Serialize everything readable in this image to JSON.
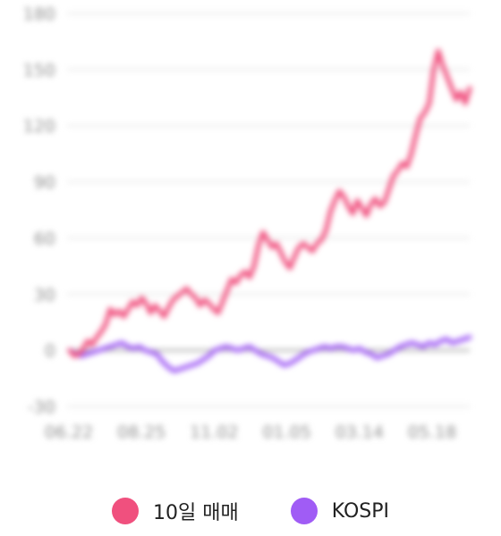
{
  "chart_data": {
    "type": "line",
    "x_tick_labels": [
      "06.22",
      "08.25",
      "11.02",
      "01.05",
      "03.14",
      "05.18"
    ],
    "y_ticks": [
      180,
      150,
      120,
      90,
      60,
      30,
      0,
      -30
    ],
    "ylim": [
      -30,
      180
    ],
    "grid": true,
    "legend_position": "bottom",
    "series": [
      {
        "name": "10일 매매",
        "color": "#f0507e",
        "values": [
          0,
          -3,
          -2,
          1,
          5,
          3,
          7,
          10,
          14,
          22,
          19,
          21,
          18,
          22,
          26,
          24,
          28,
          25,
          20,
          24,
          21,
          18,
          23,
          27,
          29,
          31,
          33,
          30,
          28,
          24,
          27,
          25,
          22,
          20,
          26,
          32,
          38,
          36,
          40,
          42,
          39,
          45,
          56,
          63,
          59,
          55,
          57,
          52,
          47,
          44,
          50,
          55,
          57,
          55,
          53,
          57,
          59,
          64,
          74,
          80,
          85,
          82,
          77,
          73,
          80,
          76,
          72,
          78,
          81,
          77,
          79,
          86,
          93,
          96,
          100,
          98,
          105,
          115,
          124,
          127,
          132,
          150,
          160,
          152,
          146,
          140,
          134,
          138,
          132,
          140
        ]
      },
      {
        "name": "KOSPI",
        "color": "#a05cf5",
        "values": [
          0,
          -2,
          -3,
          -2,
          -1,
          0,
          1,
          2,
          3,
          4,
          2,
          1,
          2,
          0,
          -1,
          -2,
          -6,
          -9,
          -11,
          -10,
          -9,
          -8,
          -7,
          -5,
          -3,
          0,
          1,
          2,
          1,
          0,
          1,
          2,
          0,
          -2,
          -3,
          -4,
          -6,
          -8,
          -7,
          -5,
          -3,
          -1,
          0,
          1,
          2,
          1,
          2,
          2,
          1,
          0,
          1,
          -1,
          -2,
          -4,
          -3,
          -2,
          0,
          2,
          3,
          4,
          3,
          2,
          4,
          3,
          5,
          6,
          4,
          5,
          6,
          7
        ]
      }
    ]
  }
}
